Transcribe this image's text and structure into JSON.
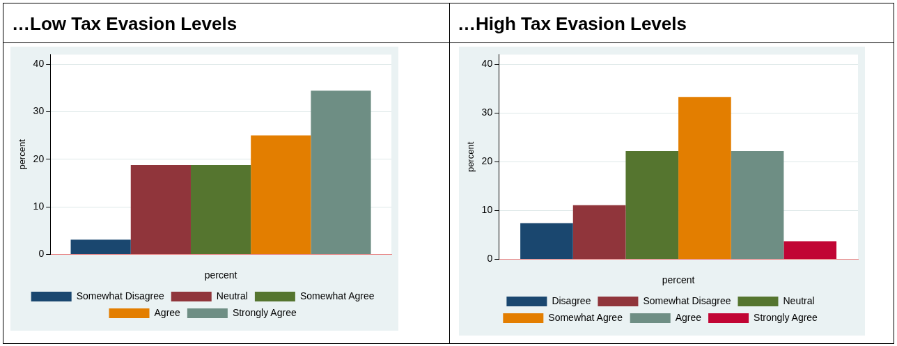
{
  "chart_data": [
    {
      "type": "bar",
      "title": "…Low Tax Evasion Levels",
      "categories": [
        null
      ],
      "xlabel": "percent",
      "ylabel": "percent",
      "ylim": [
        0,
        42
      ],
      "yticks": [
        0,
        10,
        20,
        30,
        40
      ],
      "grid": "y",
      "legend": "bottom",
      "series": [
        {
          "name": "Somewhat Disagree",
          "color": "#1a476f",
          "values": [
            3.1
          ]
        },
        {
          "name": "Neutral",
          "color": "#90353b",
          "values": [
            18.8
          ]
        },
        {
          "name": "Somewhat Agree",
          "color": "#55752f",
          "values": [
            18.8
          ]
        },
        {
          "name": "Agree",
          "color": "#e37e00",
          "values": [
            25
          ]
        },
        {
          "name": "Strongly Agree",
          "color": "#6e8e84",
          "values": [
            34.4
          ]
        }
      ]
    },
    {
      "type": "bar",
      "title": "…High Tax Evasion Levels",
      "categories": [
        null
      ],
      "xlabel": "percent",
      "ylabel": "percent",
      "ylim": [
        0,
        42
      ],
      "yticks": [
        0,
        10,
        20,
        30,
        40
      ],
      "grid": "y",
      "legend": "bottom",
      "series": [
        {
          "name": "Disagree",
          "color": "#1a476f",
          "values": [
            7.4
          ]
        },
        {
          "name": "Somewhat Disagree",
          "color": "#90353b",
          "values": [
            11.1
          ]
        },
        {
          "name": "Neutral",
          "color": "#55752f",
          "values": [
            22.2
          ]
        },
        {
          "name": "Somewhat Agree",
          "color": "#e37e00",
          "values": [
            33.3
          ]
        },
        {
          "name": "Agree",
          "color": "#6e8e84",
          "values": [
            22.2
          ]
        },
        {
          "name": "Strongly Agree",
          "color": "#c10534",
          "values": [
            3.7
          ]
        }
      ]
    }
  ]
}
